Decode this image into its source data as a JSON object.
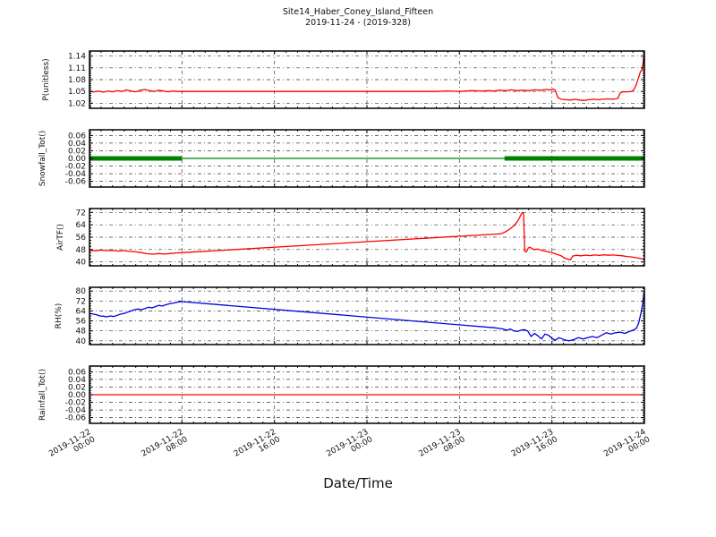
{
  "header": {
    "title": "Site14_Haber_Coney_Island_Fifteen",
    "subtitle": "2019-11-24 - (2019-328)"
  },
  "chart_data": {
    "type": "line",
    "title": "Site14_Haber_Coney_Island_Fifteen",
    "subtitle": "2019-11-24 - (2019-328)",
    "xlabel": "Date/Time",
    "grid": "dash-dot",
    "legend": "none",
    "xlim_hours": [
      0,
      48
    ],
    "x_start": "2019-11-22 00:00",
    "x_end": "2019-11-24 00:00",
    "x_tick_hours": [
      0,
      8,
      16,
      24,
      32,
      40,
      48
    ],
    "x_ticks": [
      {
        "line1": "2019-11-22",
        "line2": "00:00"
      },
      {
        "line1": "2019-11-22",
        "line2": "08:00"
      },
      {
        "line1": "2019-11-22",
        "line2": "16:00"
      },
      {
        "line1": "2019-11-23",
        "line2": "00:00"
      },
      {
        "line1": "2019-11-23",
        "line2": "08:00"
      },
      {
        "line1": "2019-11-23",
        "line2": "16:00"
      },
      {
        "line1": "2019-11-24",
        "line2": "00:00"
      }
    ],
    "panels": [
      {
        "name": "P",
        "ylabel": "P(unitless)",
        "ylim": [
          1.007,
          1.153
        ],
        "ytick_values": [
          1.02,
          1.05,
          1.08,
          1.11,
          1.14
        ],
        "ytick_labels": [
          "1.02",
          "1.05",
          "1.08",
          "1.11",
          "1.14"
        ],
        "minor_step": 0.005,
        "series": [
          {
            "name": "p-line",
            "color": "#ff0000",
            "width": 1.3,
            "points": [
              [
                0,
                1.05
              ],
              [
                0.4,
                1.049
              ],
              [
                0.8,
                1.051
              ],
              [
                1.2,
                1.048
              ],
              [
                1.6,
                1.051
              ],
              [
                2,
                1.049
              ],
              [
                2.4,
                1.052
              ],
              [
                2.8,
                1.05
              ],
              [
                3.2,
                1.054
              ],
              [
                3.6,
                1.051
              ],
              [
                4,
                1.049
              ],
              [
                4.4,
                1.053
              ],
              [
                4.8,
                1.055
              ],
              [
                5.2,
                1.052
              ],
              [
                5.6,
                1.05
              ],
              [
                6,
                1.053
              ],
              [
                6.4,
                1.051
              ],
              [
                6.8,
                1.049
              ],
              [
                7.2,
                1.051
              ],
              [
                7.6,
                1.05
              ],
              [
                8,
                1.05
              ],
              [
                30,
                1.05
              ],
              [
                31,
                1.051
              ],
              [
                32,
                1.05
              ],
              [
                33,
                1.052
              ],
              [
                34,
                1.051
              ],
              [
                34.5,
                1.052
              ],
              [
                35,
                1.051
              ],
              [
                35.5,
                1.053
              ],
              [
                36,
                1.052
              ],
              [
                36.5,
                1.054
              ],
              [
                37,
                1.052
              ],
              [
                37.5,
                1.053
              ],
              [
                38,
                1.052
              ],
              [
                38.5,
                1.054
              ],
              [
                39,
                1.053
              ],
              [
                39.5,
                1.055
              ],
              [
                39.8,
                1.054
              ],
              [
                40.1,
                1.056
              ],
              [
                40.3,
                1.053
              ],
              [
                40.5,
                1.035
              ],
              [
                40.8,
                1.03
              ],
              [
                41.2,
                1.029
              ],
              [
                41.6,
                1.028
              ],
              [
                42,
                1.03
              ],
              [
                42.4,
                1.028
              ],
              [
                42.8,
                1.027
              ],
              [
                43.2,
                1.029
              ],
              [
                43.6,
                1.03
              ],
              [
                44,
                1.029
              ],
              [
                44.4,
                1.03
              ],
              [
                44.8,
                1.031
              ],
              [
                45.2,
                1.03
              ],
              [
                45.5,
                1.031
              ],
              [
                45.7,
                1.032
              ],
              [
                45.9,
                1.046
              ],
              [
                46.1,
                1.049
              ],
              [
                46.5,
                1.049
              ],
              [
                46.9,
                1.05
              ],
              [
                47.1,
                1.055
              ],
              [
                47.3,
                1.068
              ],
              [
                47.5,
                1.085
              ],
              [
                47.65,
                1.1
              ],
              [
                47.8,
                1.105
              ],
              [
                47.9,
                1.125
              ],
              [
                48,
                1.146
              ]
            ]
          }
        ]
      },
      {
        "name": "Snowfall_Tot",
        "ylabel": "Snowfall_Tot()",
        "ylim": [
          -0.075,
          0.075
        ],
        "ytick_values": [
          -0.06,
          -0.04,
          -0.02,
          0,
          0.02,
          0.04,
          0.06
        ],
        "ytick_labels": [
          "-0.06",
          "-0.04",
          "-0.02",
          "0.00",
          "0.02",
          "0.04",
          "0.06"
        ],
        "minor_step": 0.005,
        "series": [
          {
            "name": "snowfall-line",
            "color": "#008000",
            "width": 1.3,
            "points": [
              [
                0,
                0
              ],
              [
                48,
                0
              ]
            ]
          },
          {
            "name": "snowfall-dense-markers-early",
            "color": "#008000",
            "width": 5,
            "points": [
              [
                0,
                0
              ],
              [
                8,
                0
              ]
            ]
          },
          {
            "name": "snowfall-dense-markers-late",
            "color": "#008000",
            "width": 5,
            "points": [
              [
                35.9,
                0
              ],
              [
                48,
                0
              ]
            ]
          }
        ]
      },
      {
        "name": "AirTF",
        "ylabel": "AirTF()",
        "ylim": [
          37.5,
          74.5
        ],
        "ytick_values": [
          40,
          48,
          56,
          64,
          72
        ],
        "ytick_labels": [
          "40",
          "48",
          "56",
          "64",
          "72"
        ],
        "minor_step": 2,
        "series": [
          {
            "name": "airtf-line",
            "color": "#ff0000",
            "width": 1.3,
            "points": [
              [
                0,
                47.5
              ],
              [
                0.5,
                47.2
              ],
              [
                1,
                47.6
              ],
              [
                1.5,
                47.3
              ],
              [
                2,
                47.5
              ],
              [
                2.5,
                47.0
              ],
              [
                3,
                47.3
              ],
              [
                3.5,
                46.8
              ],
              [
                4,
                46.5
              ],
              [
                4.5,
                46.0
              ],
              [
                5,
                45.3
              ],
              [
                5.5,
                45.0
              ],
              [
                6,
                45.4
              ],
              [
                6.5,
                45.1
              ],
              [
                7,
                45.5
              ],
              [
                7.5,
                45.8
              ],
              [
                8,
                46.0
              ],
              [
                35.2,
                58.0
              ],
              [
                35.6,
                58.2
              ],
              [
                36,
                59.5
              ],
              [
                36.4,
                61.5
              ],
              [
                36.8,
                64.0
              ],
              [
                37,
                66.0
              ],
              [
                37.2,
                68.5
              ],
              [
                37.35,
                71.0
              ],
              [
                37.45,
                72.0
              ],
              [
                37.55,
                71.0
              ],
              [
                37.65,
                47.0
              ],
              [
                37.8,
                46.5
              ],
              [
                37.95,
                49.0
              ],
              [
                38.1,
                49.5
              ],
              [
                38.3,
                48.5
              ],
              [
                38.5,
                48.0
              ],
              [
                38.8,
                48.3
              ],
              [
                39.1,
                47.5
              ],
              [
                39.4,
                47.0
              ],
              [
                39.7,
                46.5
              ],
              [
                40,
                46.0
              ],
              [
                40.4,
                45.0
              ],
              [
                40.8,
                44.0
              ],
              [
                41.1,
                42.5
              ],
              [
                41.4,
                41.8
              ],
              [
                41.6,
                41.3
              ],
              [
                41.8,
                43.8
              ],
              [
                42.1,
                44.3
              ],
              [
                42.5,
                44.0
              ],
              [
                42.9,
                44.4
              ],
              [
                43.3,
                44.1
              ],
              [
                43.7,
                44.5
              ],
              [
                44.1,
                44.2
              ],
              [
                44.5,
                44.6
              ],
              [
                44.9,
                44.3
              ],
              [
                45.3,
                44.5
              ],
              [
                45.7,
                44.2
              ],
              [
                46.1,
                44.0
              ],
              [
                46.5,
                43.5
              ],
              [
                46.9,
                43.2
              ],
              [
                47.3,
                42.7
              ],
              [
                47.7,
                42.2
              ],
              [
                48,
                41.5
              ]
            ]
          }
        ]
      },
      {
        "name": "RH",
        "ylabel": "RH(%)",
        "ylim": [
          37,
          83
        ],
        "ytick_values": [
          40,
          48,
          56,
          64,
          72,
          80
        ],
        "ytick_labels": [
          "40",
          "48",
          "56",
          "64",
          "72",
          "80"
        ],
        "minor_step": 2,
        "series": [
          {
            "name": "rh-line",
            "color": "#0000dd",
            "width": 1.3,
            "points": [
              [
                0,
                62.0
              ],
              [
                0.3,
                61.5
              ],
              [
                0.6,
                61.0
              ],
              [
                0.9,
                60.0
              ],
              [
                1.2,
                59.8
              ],
              [
                1.5,
                59.3
              ],
              [
                1.8,
                60.0
              ],
              [
                2.1,
                59.5
              ],
              [
                2.4,
                60.5
              ],
              [
                2.7,
                61.5
              ],
              [
                3.0,
                62.0
              ],
              [
                3.3,
                63.0
              ],
              [
                3.6,
                64.0
              ],
              [
                3.9,
                65.0
              ],
              [
                4.2,
                65.5
              ],
              [
                4.5,
                65.0
              ],
              [
                4.8,
                66.0
              ],
              [
                5.1,
                67.0
              ],
              [
                5.4,
                66.5
              ],
              [
                5.7,
                67.5
              ],
              [
                6.0,
                68.5
              ],
              [
                6.3,
                68.0
              ],
              [
                6.6,
                69.0
              ],
              [
                7.0,
                70.0
              ],
              [
                7.4,
                70.5
              ],
              [
                7.7,
                71.3
              ],
              [
                8.0,
                71.5
              ],
              [
                35.0,
                50.5
              ],
              [
                35.4,
                50.0
              ],
              [
                35.8,
                49.5
              ],
              [
                36.1,
                48.5
              ],
              [
                36.4,
                49.5
              ],
              [
                36.7,
                48.0
              ],
              [
                37.0,
                47.5
              ],
              [
                37.3,
                48.5
              ],
              [
                37.6,
                49.0
              ],
              [
                37.9,
                48.0
              ],
              [
                38.2,
                43.5
              ],
              [
                38.5,
                46.0
              ],
              [
                38.8,
                44.0
              ],
              [
                39.1,
                41.5
              ],
              [
                39.4,
                45.5
              ],
              [
                39.7,
                44.5
              ],
              [
                40.0,
                42.0
              ],
              [
                40.3,
                40.5
              ],
              [
                40.6,
                42.5
              ],
              [
                40.9,
                41.5
              ],
              [
                41.2,
                40.5
              ],
              [
                41.5,
                40.0
              ],
              [
                41.9,
                41.0
              ],
              [
                42.3,
                42.5
              ],
              [
                42.7,
                41.5
              ],
              [
                43.1,
                42.5
              ],
              [
                43.5,
                43.5
              ],
              [
                43.9,
                42.5
              ],
              [
                44.3,
                44.5
              ],
              [
                44.7,
                46.5
              ],
              [
                45.1,
                45.5
              ],
              [
                45.5,
                46.5
              ],
              [
                45.9,
                47.0
              ],
              [
                46.3,
                46.0
              ],
              [
                46.7,
                47.5
              ],
              [
                47.0,
                48.5
              ],
              [
                47.3,
                50.0
              ],
              [
                47.5,
                54.0
              ],
              [
                47.7,
                62.0
              ],
              [
                47.85,
                70.0
              ],
              [
                48,
                79.5
              ]
            ]
          }
        ]
      },
      {
        "name": "Rainfall_Tot",
        "ylabel": "Rainfall_Tot()",
        "ylim": [
          -0.075,
          0.075
        ],
        "ytick_values": [
          -0.06,
          -0.04,
          -0.02,
          0,
          0.02,
          0.04,
          0.06
        ],
        "ytick_labels": [
          "-0.06",
          "-0.04",
          "-0.02",
          "0.00",
          "0.02",
          "0.04",
          "0.06"
        ],
        "minor_step": 0.005,
        "series": [
          {
            "name": "rainfall-line",
            "color": "#ff0000",
            "width": 1.3,
            "points": [
              [
                0,
                0
              ],
              [
                48,
                0
              ]
            ]
          }
        ]
      }
    ]
  }
}
